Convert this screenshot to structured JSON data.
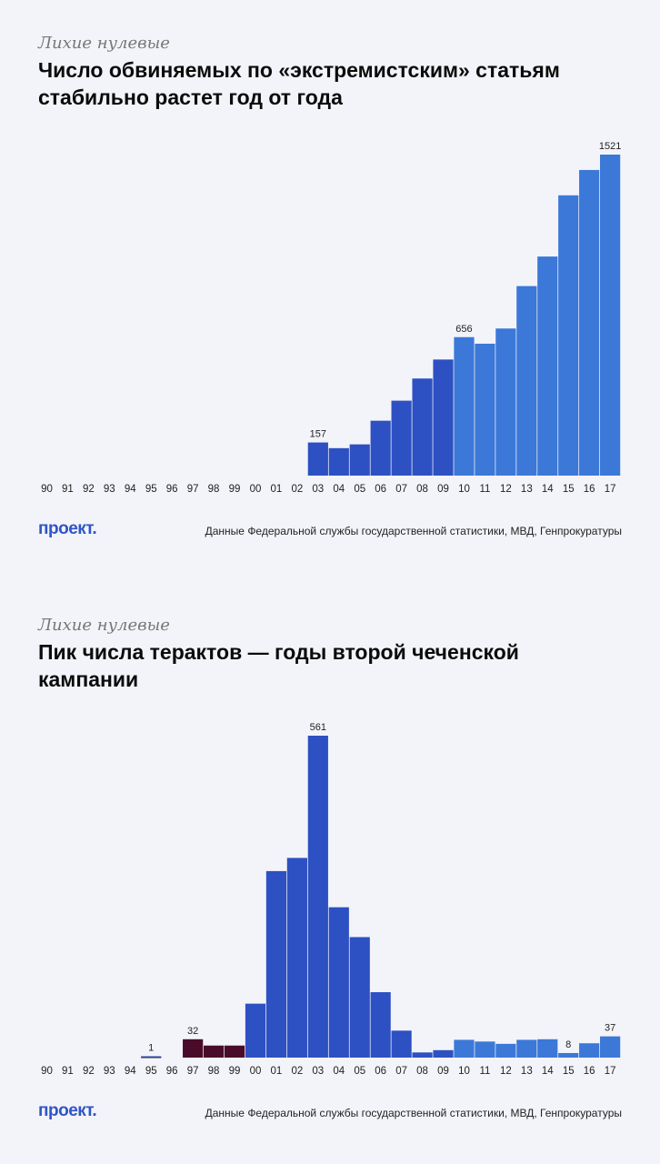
{
  "panels": [
    {
      "kicker": "Лихие нулевые",
      "title": "Число обвиняемых по «экстремистским» статьям стабильно растет год от года",
      "logo": "проект.",
      "source": "Данные Федеральной службы государственной статистики, МВД, Генпрокуратуры"
    },
    {
      "kicker": "Лихие нулевые",
      "title": "Пик числа терактов — годы второй чеченской кампании",
      "logo": "проект.",
      "source": "Данные Федеральной службы государственной статистики, МВД, Генпрокуратуры"
    }
  ],
  "chart_data": [
    {
      "type": "bar",
      "categories": [
        "90",
        "91",
        "92",
        "93",
        "94",
        "95",
        "96",
        "97",
        "98",
        "99",
        "00",
        "01",
        "02",
        "03",
        "04",
        "05",
        "06",
        "07",
        "08",
        "09",
        "10",
        "11",
        "12",
        "13",
        "14",
        "15",
        "16",
        "17"
      ],
      "values": [
        null,
        null,
        null,
        null,
        null,
        null,
        null,
        null,
        null,
        null,
        null,
        null,
        null,
        157,
        130,
        148,
        260,
        355,
        460,
        550,
        656,
        625,
        697,
        898,
        1038,
        1328,
        1448,
        1521
      ],
      "data_labels": {
        "13": "157",
        "20": "656",
        "27": "1521"
      },
      "colors": {
        "dark_blue": "#2d50c2",
        "light_blue": "#3b78d8"
      },
      "light_from_index": 20,
      "ylim": [
        0,
        1521
      ]
    },
    {
      "type": "bar",
      "categories": [
        "90",
        "91",
        "92",
        "93",
        "94",
        "95",
        "96",
        "97",
        "98",
        "99",
        "00",
        "01",
        "02",
        "03",
        "04",
        "05",
        "06",
        "07",
        "08",
        "09",
        "10",
        "11",
        "12",
        "13",
        "14",
        "15",
        "16",
        "17"
      ],
      "values": [
        null,
        null,
        null,
        null,
        null,
        1,
        null,
        32,
        21,
        21,
        94,
        325,
        348,
        561,
        262,
        210,
        114,
        47,
        9,
        13,
        31,
        28,
        24,
        31,
        32,
        8,
        25,
        37
      ],
      "data_labels": {
        "5": "1",
        "7": "32",
        "13": "561",
        "25": "8",
        "27": "37"
      },
      "colors": {
        "maroon": "#4a0b2a",
        "dark_blue": "#2d50c2",
        "light_blue": "#3b78d8"
      },
      "maroon_indices": [
        7,
        8,
        9
      ],
      "light_from_index": 20,
      "ylim": [
        0,
        561
      ]
    }
  ]
}
